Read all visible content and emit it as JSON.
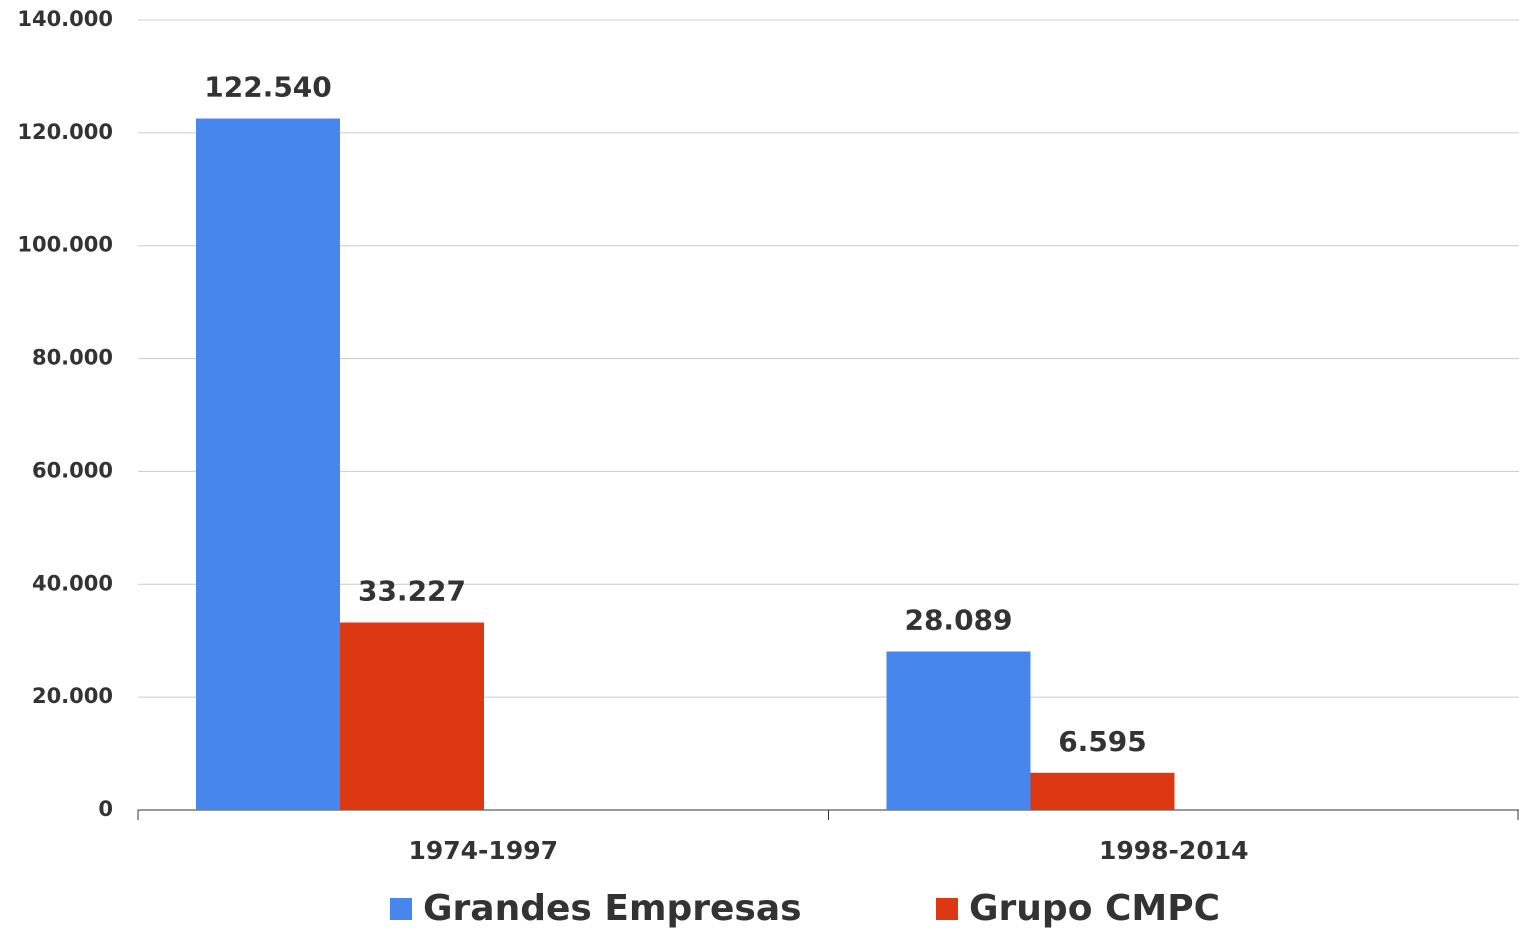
{
  "chart_data": {
    "type": "bar",
    "categories": [
      "1974-1997",
      "1998-2014"
    ],
    "series": [
      {
        "name": "Grandes Empresas",
        "color": "#4786ec",
        "values": [
          122540,
          28089
        ],
        "value_labels": [
          "122.540",
          "28.089"
        ]
      },
      {
        "name": "Grupo CMPC",
        "color": "#dc3912",
        "values": [
          33227,
          6595
        ],
        "value_labels": [
          "33.227",
          "6.595"
        ]
      }
    ],
    "ylim": [
      0,
      140000
    ],
    "yticks": [
      0,
      {
        "value": 20000,
        "label": "20.000"
      },
      {
        "value": 40000,
        "label": "40.000"
      },
      {
        "value": 60000,
        "label": "60.000"
      },
      {
        "value": 80000,
        "label": "80.000"
      },
      {
        "value": 100000,
        "label": "100.000"
      },
      {
        "value": 120000,
        "label": "120.000"
      },
      {
        "value": 140000,
        "label": "140.000"
      }
    ],
    "grid": true,
    "legend": "bottom"
  }
}
